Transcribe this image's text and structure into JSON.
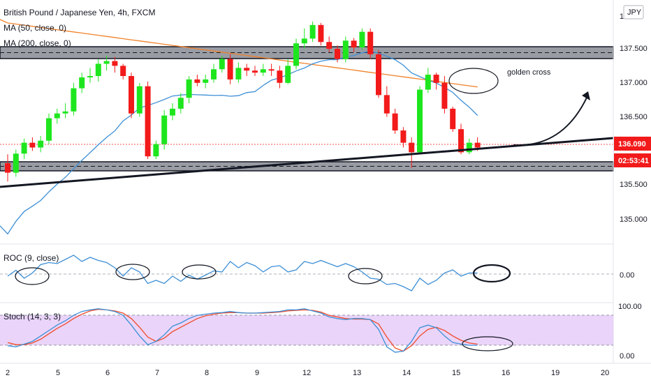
{
  "header": {
    "title": "British Pound / Japanese Yen, 4h, FXCM",
    "ma50_label": "MA (50, close, 0)",
    "ma200_label": "MA (200, close, 0)",
    "currency": "JPY"
  },
  "annotation": {
    "golden_cross": "golden cross"
  },
  "price_axis": {
    "ticks": [
      "137.500",
      "137.000",
      "136.500",
      "135.500",
      "135.000"
    ],
    "top_tick": "138",
    "last_price": "136.090",
    "countdown": "02:53:41"
  },
  "x_axis": {
    "ticks": [
      "2",
      "5",
      "6",
      "7",
      "8",
      "9",
      "12",
      "13",
      "14",
      "15",
      "16",
      "19",
      "20"
    ]
  },
  "roc": {
    "label": "ROC (9, close)",
    "zero_tick": "0.00"
  },
  "stoch": {
    "label": "Stoch (14, 3, 3)",
    "tick_top": "100.00",
    "tick_bottom": "0.00"
  },
  "colors": {
    "up": "#1ee61e",
    "down": "#f21a1a",
    "ma50": "#3d8fd6",
    "ma200": "#f0822a",
    "k_line": "#3d8fd6",
    "d_line": "#f04a2a",
    "band": "#e3c6f7",
    "price_pill": "#f21a1a"
  },
  "chart_data": [
    {
      "type": "candlestick",
      "title": "British Pound / Japanese Yen, 4h, FXCM",
      "x": [
        "2",
        "2",
        "2",
        "2",
        "2",
        "5",
        "5",
        "5",
        "5",
        "5",
        "5",
        "6",
        "6",
        "6",
        "6",
        "6",
        "6",
        "7",
        "7",
        "7",
        "7",
        "7",
        "7",
        "8",
        "8",
        "8",
        "8",
        "8",
        "8",
        "9",
        "9",
        "9",
        "9",
        "9",
        "9",
        "12",
        "12",
        "12",
        "12",
        "12",
        "12",
        "13",
        "13",
        "13",
        "13",
        "13",
        "13",
        "14",
        "14",
        "14",
        "14",
        "14",
        "14",
        "15",
        "15",
        "15",
        "15",
        "15"
      ],
      "open": [
        135.82,
        135.68,
        135.96,
        136.12,
        136.05,
        136.15,
        136.48,
        136.55,
        136.58,
        136.92,
        137.08,
        137.1,
        137.28,
        137.32,
        137.25,
        137.1,
        136.55,
        136.95,
        135.92,
        136.1,
        136.52,
        136.62,
        136.78,
        137.05,
        137.0,
        137.05,
        137.2,
        137.35,
        137.05,
        137.22,
        137.18,
        137.15,
        137.2,
        137.18,
        137.0,
        137.25,
        137.58,
        137.65,
        137.85,
        137.6,
        137.5,
        137.35,
        137.62,
        137.52,
        137.75,
        137.42,
        136.82,
        136.55,
        136.3,
        136.12,
        135.98,
        136.9,
        137.12,
        137.0,
        136.62,
        136.32,
        135.98,
        136.12
      ],
      "close": [
        135.68,
        135.96,
        136.12,
        136.05,
        136.15,
        136.48,
        136.55,
        136.58,
        136.92,
        137.08,
        137.1,
        137.28,
        137.32,
        137.25,
        137.1,
        136.55,
        136.95,
        135.92,
        136.1,
        136.52,
        136.62,
        136.78,
        137.05,
        137.0,
        137.05,
        137.2,
        137.35,
        137.05,
        137.22,
        137.18,
        137.15,
        137.2,
        137.18,
        137.0,
        137.25,
        137.58,
        137.65,
        137.85,
        137.6,
        137.5,
        137.35,
        137.62,
        137.52,
        137.75,
        137.42,
        136.82,
        136.55,
        136.3,
        136.12,
        135.98,
        136.9,
        137.12,
        137.0,
        136.62,
        136.32,
        135.98,
        136.12,
        136.05
      ],
      "high": [
        135.95,
        136.02,
        136.18,
        136.2,
        136.22,
        136.55,
        136.62,
        136.7,
        137.0,
        137.15,
        137.22,
        137.35,
        137.4,
        137.38,
        137.28,
        137.15,
        137.0,
        137.02,
        136.15,
        136.6,
        136.7,
        136.85,
        137.1,
        137.12,
        137.12,
        137.28,
        137.4,
        137.42,
        137.3,
        137.28,
        137.25,
        137.28,
        137.28,
        137.25,
        137.35,
        137.65,
        137.8,
        137.9,
        137.88,
        137.68,
        137.55,
        137.68,
        137.66,
        137.8,
        137.8,
        137.48,
        136.95,
        136.62,
        136.35,
        136.2,
        136.95,
        137.22,
        137.15,
        137.1,
        136.65,
        136.4,
        136.18,
        136.2
      ],
      "low": [
        135.55,
        135.62,
        135.88,
        136.0,
        135.98,
        136.1,
        136.4,
        136.48,
        136.52,
        136.85,
        137.0,
        137.02,
        137.18,
        137.15,
        137.05,
        136.48,
        136.5,
        135.88,
        135.88,
        136.02,
        136.45,
        136.55,
        136.7,
        136.95,
        136.92,
        137.0,
        137.15,
        136.98,
        137.0,
        137.1,
        137.1,
        137.1,
        137.1,
        136.92,
        136.98,
        137.2,
        137.5,
        137.6,
        137.55,
        137.45,
        137.3,
        137.3,
        137.45,
        137.48,
        137.35,
        136.78,
        136.5,
        136.25,
        136.05,
        135.75,
        135.95,
        136.85,
        136.9,
        136.55,
        136.28,
        135.95,
        135.95,
        136.0
      ],
      "ylim": [
        134.85,
        138.0
      ],
      "overlays": [
        {
          "name": "MA (50, close, 0)"
        },
        {
          "name": "MA (200, close, 0)"
        }
      ],
      "annotations": [
        "golden cross"
      ]
    },
    {
      "type": "line",
      "title": "ROC (9, close)",
      "values": [
        -0.1,
        0.18,
        -0.2,
        0.05,
        0.45,
        0.55,
        0.5,
        0.7,
        0.9,
        0.6,
        0.8,
        0.65,
        0.55,
        0.3,
        -0.1,
        0.3,
        0.1,
        -0.45,
        -0.3,
        -0.45,
        -0.1,
        -0.35,
        -0.05,
        -0.25,
        -0.05,
        0.15,
        0.1,
        0.6,
        0.3,
        0.55,
        0.4,
        0.1,
        0.35,
        0.4,
        0.1,
        0.2,
        0.6,
        0.5,
        0.65,
        0.5,
        0.35,
        0.5,
        0.35,
        0.1,
        -0.2,
        -0.25,
        -0.5,
        -0.45,
        -0.6,
        -0.8,
        -0.2,
        -0.5,
        -0.3,
        0.05,
        0.2,
        -0.1,
        0.05,
        0.05
      ],
      "reference": 0.0
    },
    {
      "type": "line",
      "title": "Stoch (14, 3, 3)",
      "series": [
        {
          "values": [
            22,
            20,
            25,
            30,
            40,
            50,
            60,
            68,
            78,
            85,
            88,
            90,
            88,
            85,
            78,
            60,
            40,
            24,
            30,
            42,
            58,
            64,
            72,
            78,
            80,
            82,
            83,
            85,
            83,
            82,
            82,
            83,
            84,
            85,
            88,
            88,
            90,
            86,
            82,
            75,
            72,
            70,
            72,
            72,
            70,
            52,
            20,
            10,
            12,
            30,
            55,
            60,
            55,
            40,
            28,
            25,
            23,
            23
          ]
        },
        {
          "values": [
            28,
            24,
            24,
            27,
            34,
            44,
            54,
            62,
            72,
            80,
            86,
            89,
            88,
            86,
            82,
            72,
            56,
            38,
            30,
            36,
            48,
            56,
            64,
            72,
            77,
            80,
            82,
            83,
            83,
            82,
            82,
            82,
            83,
            84,
            86,
            87,
            88,
            87,
            84,
            78,
            75,
            72,
            71,
            71,
            70,
            62,
            38,
            18,
            12,
            22,
            40,
            52,
            56,
            50,
            40,
            32,
            27,
            25
          ]
        }
      ],
      "ylim": [
        0,
        100
      ],
      "reference_lines": [
        20,
        80
      ]
    }
  ]
}
